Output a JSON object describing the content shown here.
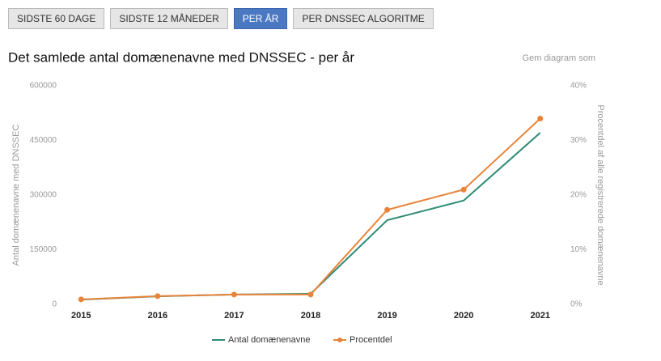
{
  "tabs": [
    "SIDSTE 60 DAGE",
    "SIDSTE 12 MÅNEDER",
    "PER ÅR",
    "PER DNSSEC ALGORITME"
  ],
  "active_tab": 2,
  "save_label": "Gem diagram som",
  "chart_data": {
    "type": "line",
    "title": "Det samlede antal domænenavne med DNSSEC - per år",
    "y_label": "Antal domænenavne med DNSSEC",
    "y2_label": "Procentdel af alle registrerede domænenavne",
    "categories": [
      "2015",
      "2016",
      "2017",
      "2018",
      "2019",
      "2020",
      "2021"
    ],
    "series": [
      {
        "name": "Antal domænenavne",
        "color": "#2e8b75",
        "values": [
          13000,
          22000,
          27000,
          29000,
          231000,
          285000,
          471000
        ]
      },
      {
        "name": "Procentdel",
        "color": "#e8843a",
        "axis": "y2",
        "values": [
          0.9,
          1.5,
          1.8,
          1.8,
          17.3,
          21,
          34
        ]
      }
    ],
    "ylim": [
      0,
      600000
    ],
    "yticks": [
      0,
      150000,
      300000,
      450000,
      600000
    ],
    "y2lim": [
      0,
      40
    ],
    "y2ticks": [
      {
        "value": 0,
        "label": "0%"
      },
      {
        "value": 10,
        "label": "10%"
      },
      {
        "value": 20,
        "label": "20%"
      },
      {
        "value": 30,
        "label": "30%"
      },
      {
        "value": 40,
        "label": "40%"
      }
    ],
    "legend": "bottom"
  }
}
